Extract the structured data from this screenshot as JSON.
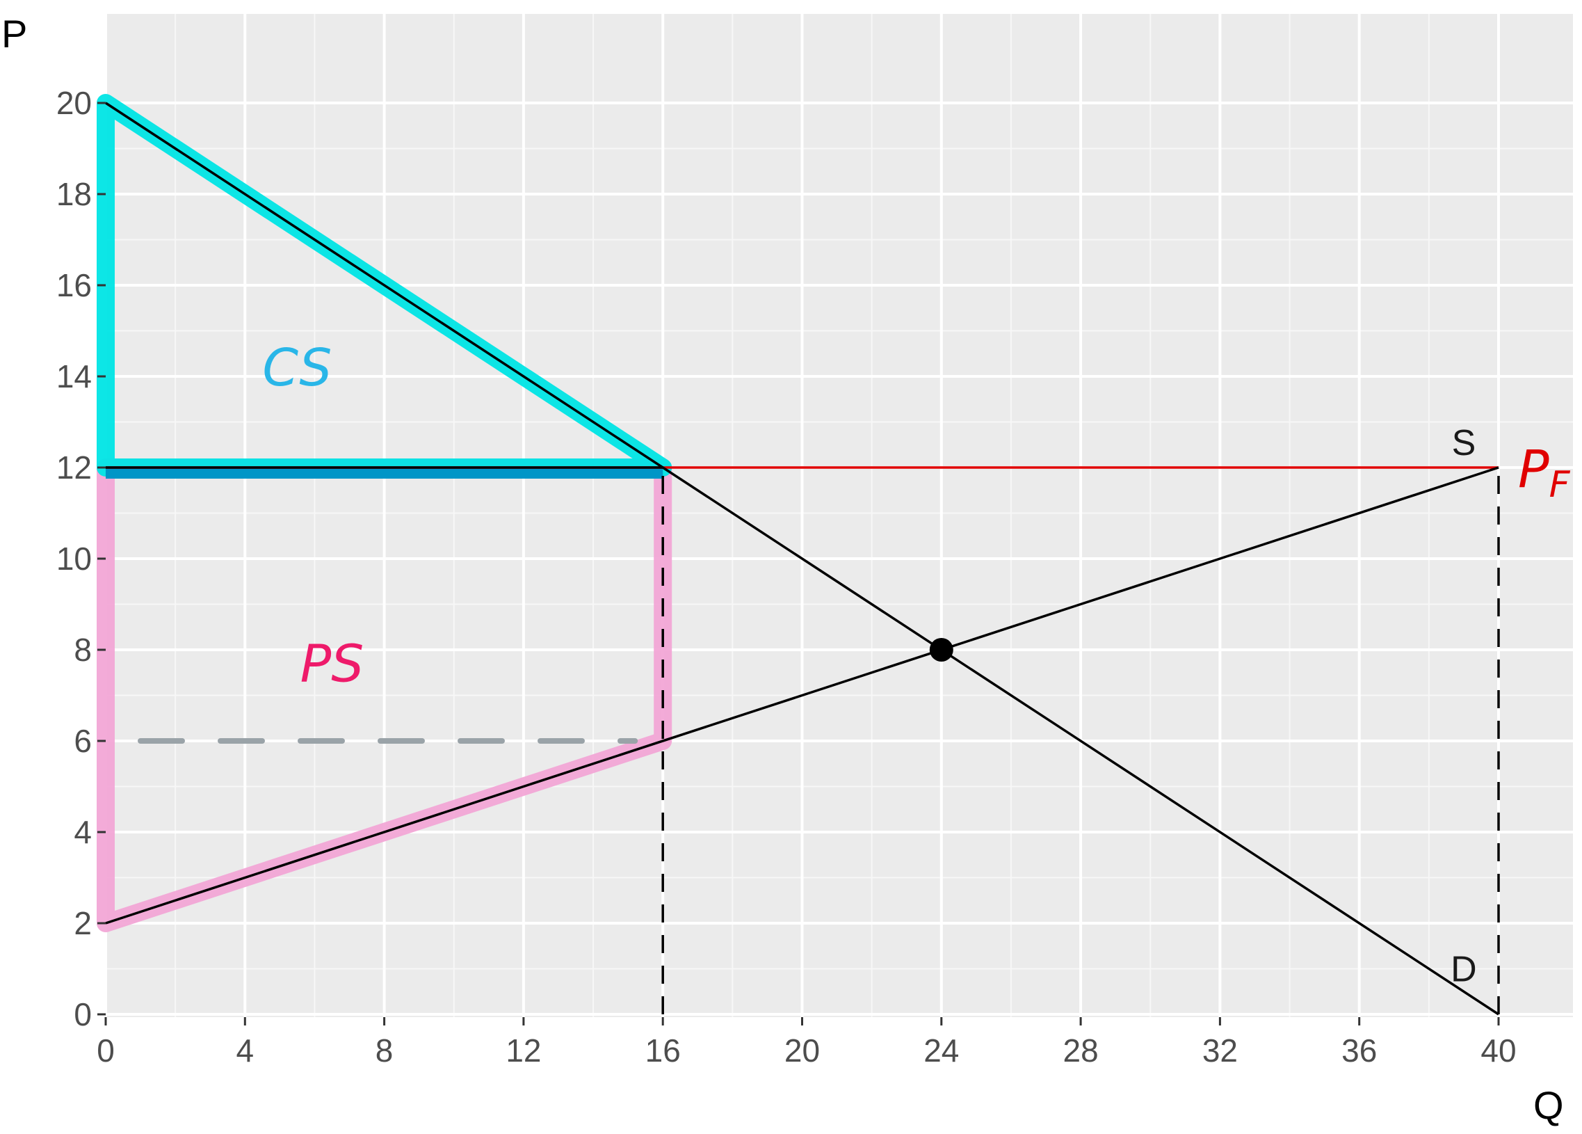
{
  "chart_data": {
    "type": "line",
    "title": "",
    "xlabel": "Q",
    "ylabel": "P",
    "xlim": [
      0,
      40
    ],
    "ylim": [
      0,
      20
    ],
    "x_ticks": [
      0,
      4,
      8,
      12,
      16,
      20,
      24,
      28,
      32,
      36,
      40
    ],
    "y_ticks": [
      0,
      2,
      4,
      6,
      8,
      10,
      12,
      14,
      16,
      18,
      20
    ],
    "grid": true,
    "series": [
      {
        "name": "D",
        "color": "#000000",
        "points": [
          [
            0,
            20
          ],
          [
            40,
            0
          ]
        ]
      },
      {
        "name": "S",
        "color": "#000000",
        "points": [
          [
            0,
            2
          ],
          [
            40,
            12
          ]
        ]
      }
    ],
    "price_floor": {
      "label": "PF",
      "label_main": "P",
      "label_sub": "F",
      "value": 12,
      "color": "#e00000"
    },
    "equilibrium": {
      "q": 24,
      "p": 8
    },
    "dashed_lines": [
      {
        "q": 16,
        "p_from": 0,
        "p_to": 12
      },
      {
        "q": 40,
        "p_from": 0,
        "p_to": 12
      }
    ],
    "guide_line": {
      "p": 6,
      "q_from": 0,
      "q_to": 16,
      "color": "#9aa3a8"
    },
    "areas": [
      {
        "label": "CS",
        "color": "#00e5e5",
        "vertices": [
          [
            0,
            20
          ],
          [
            0,
            12
          ],
          [
            16,
            12
          ]
        ],
        "label_at": [
          5.5,
          14.2
        ]
      },
      {
        "label": "PS",
        "color": "#f2a7d6",
        "vertices": [
          [
            0,
            12
          ],
          [
            0,
            2
          ],
          [
            16,
            6
          ],
          [
            16,
            12
          ]
        ],
        "label_at": [
          6.5,
          7.7
        ]
      }
    ],
    "overlap_band": {
      "color": "#0096c7",
      "p": 12,
      "q_from": 0,
      "q_to": 16
    },
    "hand_label_colors": {
      "CS": "#29b6e8",
      "PS": "#ee1a6a"
    }
  }
}
